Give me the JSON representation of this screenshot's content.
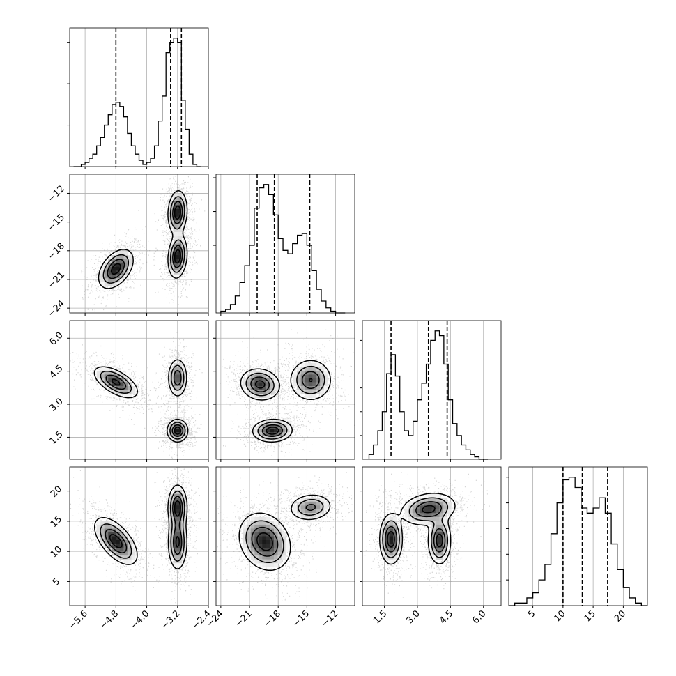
{
  "chart_data": {
    "type": "corner",
    "title": "",
    "grid": true,
    "parameters": [
      {
        "range": [
          -6.0,
          -2.4
        ],
        "ticks": [
          -5.6,
          -4.8,
          -4.0,
          -3.2,
          -2.4
        ],
        "tick_labels": [
          "−5.6",
          "−4.8",
          "−4.0",
          "−3.2",
          "−2.4"
        ],
        "quantiles": [
          -4.8,
          -3.38,
          -3.1
        ],
        "hist": {
          "edges": [
            -5.9,
            -5.8,
            -5.7,
            -5.6,
            -5.5,
            -5.4,
            -5.3,
            -5.2,
            -5.1,
            -5.0,
            -4.9,
            -4.8,
            -4.7,
            -4.6,
            -4.5,
            -4.4,
            -4.3,
            -4.2,
            -4.1,
            -4.0,
            -3.9,
            -3.8,
            -3.7,
            -3.6,
            -3.5,
            -3.4,
            -3.3,
            -3.2,
            -3.1,
            -3.0,
            -2.9,
            -2.8,
            -2.7,
            -2.6
          ],
          "counts": [
            0,
            0,
            1,
            2,
            4,
            6,
            10,
            14,
            20,
            25,
            30,
            31,
            29,
            24,
            16,
            10,
            6,
            3,
            1,
            2,
            4,
            10,
            22,
            34,
            55,
            60,
            62,
            60,
            32,
            18,
            6,
            1,
            0
          ]
        }
      },
      {
        "range": [
          -24.5,
          -10.0
        ],
        "ticks": [
          -24,
          -21,
          -18,
          -15,
          -12
        ],
        "tick_labels": [
          "−24",
          "−21",
          "−18",
          "−15",
          "−12"
        ],
        "quantiles": [
          -20.2,
          -18.4,
          -14.7
        ],
        "hist": {
          "edges": [
            -24.0,
            -23.5,
            -23.0,
            -22.5,
            -22.0,
            -21.5,
            -21.0,
            -20.5,
            -20.0,
            -19.5,
            -19.0,
            -18.5,
            -18.0,
            -17.5,
            -17.0,
            -16.5,
            -16.0,
            -15.5,
            -15.0,
            -14.5,
            -14.0,
            -13.5,
            -13.0,
            -12.5,
            -12.0,
            -11.5,
            -11.0
          ],
          "counts": [
            1,
            2,
            5,
            10,
            18,
            28,
            40,
            62,
            74,
            76,
            70,
            58,
            44,
            37,
            35,
            41,
            46,
            47,
            40,
            25,
            14,
            7,
            3,
            1,
            0,
            0
          ]
        }
      },
      {
        "range": [
          0.5,
          6.8
        ],
        "ticks": [
          1.5,
          3.0,
          4.5,
          6.0
        ],
        "tick_labels": [
          "1.5",
          "3.0",
          "4.5",
          "6.0"
        ],
        "quantiles": [
          1.8,
          3.5,
          4.35
        ],
        "hist": {
          "edges": [
            0.8,
            1.0,
            1.2,
            1.4,
            1.6,
            1.8,
            2.0,
            2.2,
            2.4,
            2.6,
            2.8,
            3.0,
            3.2,
            3.4,
            3.6,
            3.8,
            4.0,
            4.2,
            4.4,
            4.6,
            4.8,
            5.0,
            5.2,
            5.4,
            5.6,
            5.8,
            6.0,
            6.2
          ],
          "counts": [
            2,
            6,
            12,
            20,
            36,
            44,
            35,
            20,
            12,
            10,
            16,
            25,
            32,
            40,
            50,
            54,
            52,
            40,
            25,
            15,
            10,
            6,
            4,
            2,
            1,
            0,
            0
          ]
        }
      },
      {
        "range": [
          1.0,
          24.0
        ],
        "ticks": [
          5,
          10,
          15,
          20
        ],
        "tick_labels": [
          "5",
          "10",
          "15",
          "20"
        ],
        "quantiles": [
          10.0,
          13.2,
          17.4
        ],
        "hist": {
          "edges": [
            1,
            2,
            3,
            4,
            5,
            6,
            7,
            8,
            9,
            10,
            11,
            12,
            13,
            14,
            15,
            16,
            17,
            18,
            19,
            20,
            21,
            22,
            23,
            24
          ],
          "counts": [
            0,
            1,
            1,
            3,
            5,
            10,
            16,
            28,
            40,
            49,
            50,
            46,
            38,
            36,
            38,
            42,
            36,
            24,
            14,
            7,
            3,
            1,
            0
          ]
        }
      }
    ],
    "pairs": [
      {
        "row": 1,
        "col": 0,
        "modes": [
          {
            "cx": -4.8,
            "cy": -19.9,
            "sx": 0.22,
            "sy": 1.0,
            "rho": 0.45,
            "w": 1.0
          },
          {
            "cx": -3.2,
            "cy": -14.0,
            "sx": 0.12,
            "sy": 1.1,
            "rho": 0.1,
            "w": 1.05
          },
          {
            "cx": -3.2,
            "cy": -18.6,
            "sx": 0.12,
            "sy": 1.1,
            "rho": 0.15,
            "w": 1.05
          }
        ]
      },
      {
        "row": 2,
        "col": 0,
        "modes": [
          {
            "cx": -4.8,
            "cy": 4.0,
            "sx": 0.28,
            "sy": 0.35,
            "rho": -0.6,
            "w": 1.0
          },
          {
            "cx": -3.2,
            "cy": 4.2,
            "sx": 0.12,
            "sy": 0.42,
            "rho": 0.0,
            "w": 0.9
          },
          {
            "cx": -3.2,
            "cy": 1.8,
            "sx": 0.13,
            "sy": 0.25,
            "rho": 0.0,
            "w": 1.15
          }
        ]
      },
      {
        "row": 2,
        "col": 1,
        "modes": [
          {
            "cx": -19.9,
            "cy": 3.9,
            "sx": 1.0,
            "sy": 0.35,
            "rho": -0.1,
            "w": 1.0
          },
          {
            "cx": -14.6,
            "cy": 4.1,
            "sx": 1.05,
            "sy": 0.45,
            "rho": 0.0,
            "w": 0.9
          },
          {
            "cx": -18.6,
            "cy": 1.8,
            "sx": 1.0,
            "sy": 0.25,
            "rho": 0.05,
            "w": 1.1
          }
        ]
      },
      {
        "row": 3,
        "col": 0,
        "modes": [
          {
            "cx": -4.8,
            "cy": 11.7,
            "sx": 0.27,
            "sy": 1.9,
            "rho": -0.6,
            "w": 1.0
          },
          {
            "cx": -3.2,
            "cy": 17.3,
            "sx": 0.12,
            "sy": 1.8,
            "rho": 0.0,
            "w": 1.0
          },
          {
            "cx": -3.2,
            "cy": 11.5,
            "sx": 0.12,
            "sy": 2.2,
            "rho": 0.0,
            "w": 0.9
          }
        ]
      },
      {
        "row": 3,
        "col": 1,
        "modes": [
          {
            "cx": -19.4,
            "cy": 11.6,
            "sx": 1.3,
            "sy": 2.3,
            "rho": -0.2,
            "w": 1.4
          },
          {
            "cx": -14.6,
            "cy": 17.3,
            "sx": 1.1,
            "sy": 1.1,
            "rho": 0.1,
            "w": 0.9
          }
        ]
      },
      {
        "row": 3,
        "col": 2,
        "modes": [
          {
            "cx": 1.8,
            "cy": 12.0,
            "sx": 0.25,
            "sy": 2.0,
            "rho": 0.0,
            "w": 1.0
          },
          {
            "cx": 3.5,
            "cy": 17.0,
            "sx": 0.6,
            "sy": 1.3,
            "rho": 0.2,
            "w": 0.9
          },
          {
            "cx": 4.0,
            "cy": 11.8,
            "sx": 0.25,
            "sy": 1.9,
            "rho": 0.0,
            "w": 0.95
          }
        ]
      }
    ]
  }
}
